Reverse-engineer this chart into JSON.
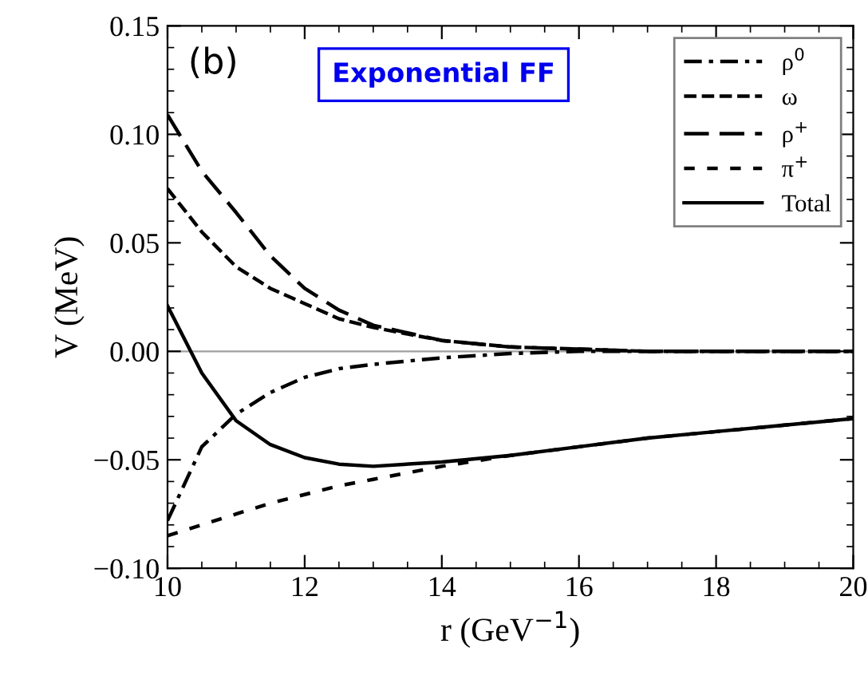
{
  "chart_data": {
    "type": "line",
    "xlabel": "r (GeV$^{−1}$)",
    "ylabel": "V (MeV)",
    "x": [
      10,
      10.5,
      11,
      11.5,
      12,
      12.5,
      13,
      14,
      15,
      16,
      17,
      18,
      19,
      20
    ],
    "series": [
      {
        "name": "ρ$^{0}$",
        "color": "#000000",
        "line_style": "dashdot",
        "values": [
          -0.078,
          -0.044,
          -0.029,
          -0.019,
          -0.012,
          -0.008,
          -0.006,
          -0.003,
          -0.001,
          0,
          0,
          0,
          0,
          0
        ]
      },
      {
        "name": "ω",
        "color": "#000000",
        "line_style": "dashed",
        "values": [
          0.075,
          0.055,
          0.039,
          0.029,
          0.022,
          0.015,
          0.011,
          0.005,
          0.002,
          0.001,
          0,
          0,
          0,
          0
        ]
      },
      {
        "name": "ρ$^{+}$",
        "color": "#000000",
        "line_style": "longdashed",
        "values": [
          0.109,
          0.083,
          0.064,
          0.044,
          0.029,
          0.019,
          0.012,
          0.005,
          0.002,
          0.001,
          0,
          0,
          0,
          0
        ]
      },
      {
        "name": "π$^{+}$",
        "color": "#000000",
        "line_style": "widedashed",
        "values": [
          -0.085,
          -0.08,
          -0.075,
          -0.07,
          -0.066,
          -0.062,
          -0.059,
          -0.053,
          -0.048,
          -0.044,
          -0.04,
          -0.037,
          -0.034,
          -0.031
        ]
      },
      {
        "name": "Total",
        "color": "#000000",
        "line_style": "solid",
        "values": [
          0.021,
          -0.01,
          -0.032,
          -0.043,
          -0.049,
          -0.052,
          -0.053,
          -0.051,
          -0.048,
          -0.044,
          -0.04,
          -0.037,
          -0.034,
          -0.031
        ]
      }
    ],
    "xlim": [
      10,
      20
    ],
    "xticks": [
      10,
      12,
      14,
      16,
      18,
      20
    ],
    "ylim": [
      -0.1,
      0.15
    ],
    "yticks": [
      {
        "value": -0.1,
        "label": "−0.10"
      },
      {
        "value": -0.05,
        "label": "−0.05"
      },
      {
        "value": 0,
        "label": "0.00"
      },
      {
        "value": 0.05,
        "label": "0.05"
      },
      {
        "value": 0.1,
        "label": "0.10"
      },
      {
        "value": 0.15,
        "label": "0.15"
      }
    ],
    "ref_lines": [
      {
        "axis": "y",
        "value": 0,
        "color": "#a0a0a0"
      }
    ],
    "annotations": [
      "(b)",
      "Exponential FF"
    ],
    "legend": "top right",
    "grid": false,
    "marker": "none"
  }
}
